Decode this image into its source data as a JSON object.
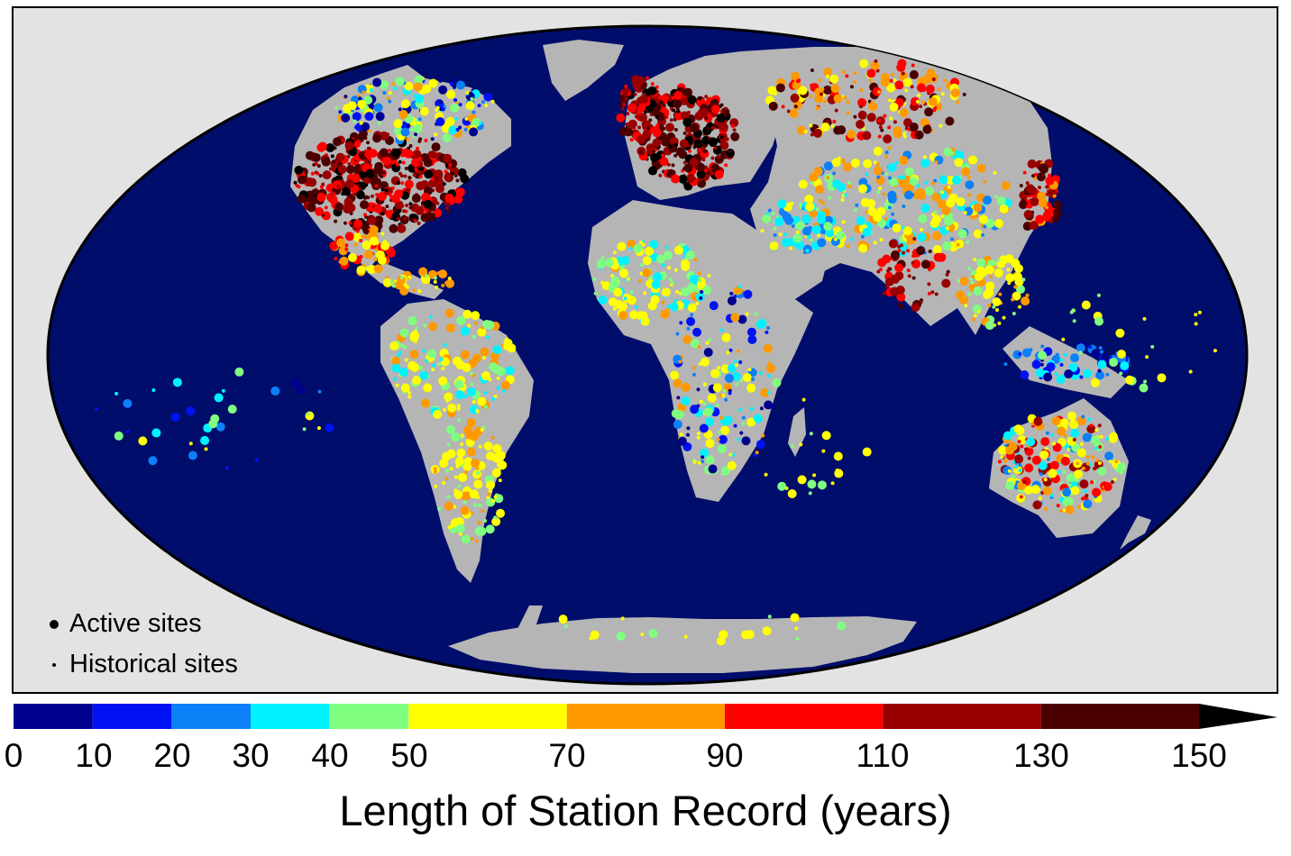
{
  "map": {
    "projection": "Mollweide",
    "ocean_color": "#000d6b",
    "land_color": "#b5b5b5",
    "frame_color": "#e3e3e3"
  },
  "legend": {
    "active_label": "Active sites",
    "historical_label": "Historical sites"
  },
  "colorbar": {
    "title": "Length of Station Record (years)",
    "ticks": [
      "0",
      "10",
      "20",
      "30",
      "40",
      "50",
      "70",
      "90",
      "110",
      "130",
      "150"
    ],
    "bins": [
      {
        "from": 0,
        "to": 10,
        "color": "#00008f"
      },
      {
        "from": 10,
        "to": 20,
        "color": "#0012f2"
      },
      {
        "from": 20,
        "to": 30,
        "color": "#0c80f7"
      },
      {
        "from": 30,
        "to": 40,
        "color": "#00f2ff"
      },
      {
        "from": 40,
        "to": 50,
        "color": "#80ff80"
      },
      {
        "from": 50,
        "to": 70,
        "color": "#ffff00"
      },
      {
        "from": 70,
        "to": 90,
        "color": "#ff9900"
      },
      {
        "from": 90,
        "to": 110,
        "color": "#ff0000"
      },
      {
        "from": 110,
        "to": 130,
        "color": "#990000"
      },
      {
        "from": 130,
        "to": 150,
        "color": "#4a0000"
      }
    ],
    "overflow_color": "#000000"
  }
}
